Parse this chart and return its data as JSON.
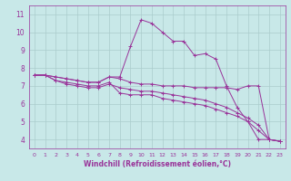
{
  "title": "",
  "xlabel": "Windchill (Refroidissement éolien,°C)",
  "ylabel": "",
  "background_color": "#c8e8e8",
  "line_color": "#993399",
  "grid_color": "#aacccc",
  "xlim": [
    -0.5,
    23.5
  ],
  "ylim": [
    3.5,
    11.5
  ],
  "yticks": [
    4,
    5,
    6,
    7,
    8,
    9,
    10,
    11
  ],
  "xticks": [
    0,
    1,
    2,
    3,
    4,
    5,
    6,
    7,
    8,
    9,
    10,
    11,
    12,
    13,
    14,
    15,
    16,
    17,
    18,
    19,
    20,
    21,
    22,
    23
  ],
  "series": [
    {
      "x": [
        0,
        1,
        2,
        3,
        4,
        5,
        6,
        7,
        8,
        9,
        10,
        11,
        12,
        13,
        14,
        15,
        16,
        17,
        18,
        19,
        20,
        21,
        22,
        23
      ],
      "y": [
        7.6,
        7.6,
        7.5,
        7.4,
        7.3,
        7.2,
        7.2,
        7.5,
        7.5,
        9.2,
        10.7,
        10.5,
        10.0,
        9.5,
        9.5,
        8.7,
        8.8,
        8.5,
        7.0,
        5.8,
        5.0,
        4.0,
        4.0,
        3.9
      ]
    },
    {
      "x": [
        0,
        1,
        2,
        3,
        4,
        5,
        6,
        7,
        8,
        9,
        10,
        11,
        12,
        13,
        14,
        15,
        16,
        17,
        18,
        19,
        20,
        21,
        22,
        23
      ],
      "y": [
        7.6,
        7.6,
        7.5,
        7.4,
        7.3,
        7.2,
        7.2,
        7.5,
        7.4,
        7.2,
        7.1,
        7.1,
        7.0,
        7.0,
        7.0,
        6.9,
        6.9,
        6.9,
        6.9,
        6.8,
        7.0,
        7.0,
        4.0,
        3.9
      ]
    },
    {
      "x": [
        0,
        1,
        2,
        3,
        4,
        5,
        6,
        7,
        8,
        9,
        10,
        11,
        12,
        13,
        14,
        15,
        16,
        17,
        18,
        19,
        20,
        21,
        22,
        23
      ],
      "y": [
        7.6,
        7.6,
        7.3,
        7.1,
        7.0,
        6.9,
        6.9,
        7.1,
        6.9,
        6.8,
        6.7,
        6.7,
        6.6,
        6.5,
        6.4,
        6.3,
        6.2,
        6.0,
        5.8,
        5.5,
        5.2,
        4.8,
        4.0,
        3.9
      ]
    },
    {
      "x": [
        0,
        1,
        2,
        3,
        4,
        5,
        6,
        7,
        8,
        9,
        10,
        11,
        12,
        13,
        14,
        15,
        16,
        17,
        18,
        19,
        20,
        21,
        22,
        23
      ],
      "y": [
        7.6,
        7.6,
        7.3,
        7.2,
        7.1,
        7.0,
        7.0,
        7.2,
        6.6,
        6.5,
        6.5,
        6.5,
        6.3,
        6.2,
        6.1,
        6.0,
        5.9,
        5.7,
        5.5,
        5.3,
        5.0,
        4.5,
        4.0,
        3.9
      ]
    }
  ]
}
